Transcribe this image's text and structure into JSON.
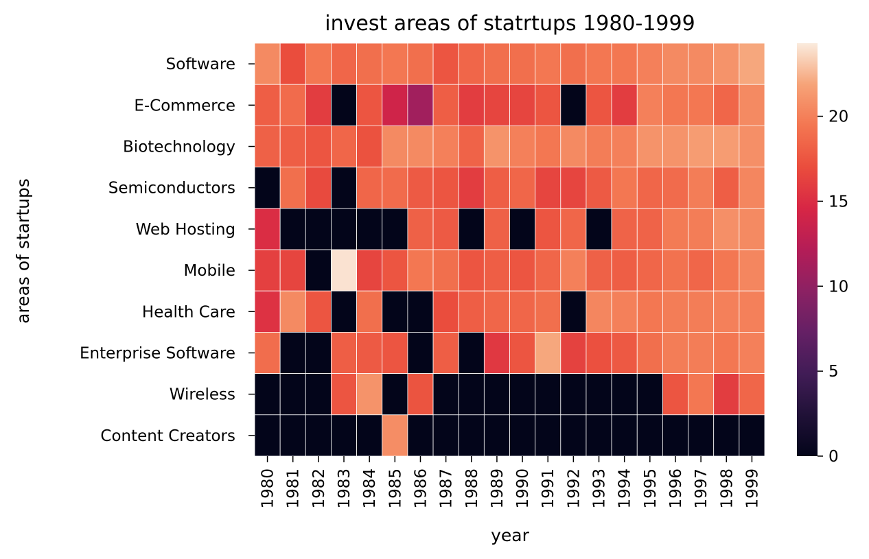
{
  "chart_data": {
    "type": "heatmap",
    "title": "invest areas of statrtups 1980-1999",
    "xlabel": "year",
    "ylabel": "areas of startups",
    "x": [
      "1980",
      "1981",
      "1982",
      "1983",
      "1984",
      "1985",
      "1986",
      "1987",
      "1988",
      "1989",
      "1990",
      "1991",
      "1992",
      "1993",
      "1994",
      "1995",
      "1996",
      "1997",
      "1998",
      "1999"
    ],
    "y": [
      "Software",
      "E-Commerce",
      "Biotechnology",
      "Semiconductors",
      "Web Hosting",
      "Mobile",
      "Health Care",
      "Enterprise Software",
      "Wireless",
      "Content Creators"
    ],
    "values": [
      [
        20.5,
        17,
        19.5,
        18.5,
        19,
        19.5,
        19,
        17.5,
        18.5,
        19,
        19,
        19.5,
        19,
        19.5,
        19.5,
        20,
        20.5,
        20.5,
        21,
        22
      ],
      [
        18,
        18.8,
        16,
        0,
        17.5,
        14,
        11,
        18,
        16,
        16.5,
        16.5,
        17.5,
        0,
        17.5,
        16,
        20,
        19.5,
        19.5,
        18.5,
        20.5
      ],
      [
        18.2,
        18,
        17.5,
        18.5,
        17.3,
        20.5,
        20.5,
        20,
        18.3,
        21,
        20,
        19.5,
        20.5,
        19.8,
        20,
        21,
        21,
        21.5,
        21.5,
        20.8
      ],
      [
        0,
        19,
        16.8,
        0,
        18.5,
        18.8,
        17.8,
        17.5,
        16,
        18,
        18.5,
        16.5,
        16.5,
        17.8,
        19.5,
        18.5,
        18.8,
        19.8,
        18,
        20.3
      ],
      [
        15,
        0,
        0,
        0,
        0,
        0,
        18.2,
        17.8,
        0,
        18.2,
        0,
        17.5,
        18.5,
        0,
        18.3,
        18.3,
        19.7,
        19.8,
        20.8,
        20.5
      ],
      [
        16.2,
        16.5,
        0,
        24,
        16.5,
        17.5,
        19.5,
        19,
        17.5,
        18,
        17.5,
        18.5,
        20,
        18.2,
        18,
        18.5,
        19.2,
        18.5,
        19.5,
        20.3
      ],
      [
        15.3,
        20.5,
        17.5,
        0,
        19,
        0,
        0,
        17,
        18,
        18.5,
        18.5,
        19,
        0,
        20.3,
        20,
        19.5,
        19.8,
        19.8,
        20,
        20
      ],
      [
        18.9,
        0,
        0,
        18,
        17.8,
        17.5,
        0,
        18,
        0,
        15.7,
        17.5,
        22,
        16.3,
        17.2,
        17.7,
        19,
        19.8,
        19.8,
        19.5,
        20
      ],
      [
        0,
        0,
        0,
        17.5,
        21,
        0,
        17.4,
        0,
        0,
        0,
        0,
        0,
        0,
        0,
        0,
        0,
        17.5,
        19.5,
        16,
        18.5
      ],
      [
        0,
        0,
        0,
        0,
        0,
        20.7,
        0,
        0,
        0,
        0,
        0,
        0,
        0,
        0,
        0,
        0,
        0,
        0,
        0,
        0
      ]
    ],
    "zlim": [
      0,
      24.3
    ],
    "colorbar_ticks": [
      0,
      5,
      10,
      15,
      20
    ],
    "colormap": "rocket",
    "cell_line_color": "#ffffff",
    "grid": false,
    "legend": "colorbar-right"
  }
}
